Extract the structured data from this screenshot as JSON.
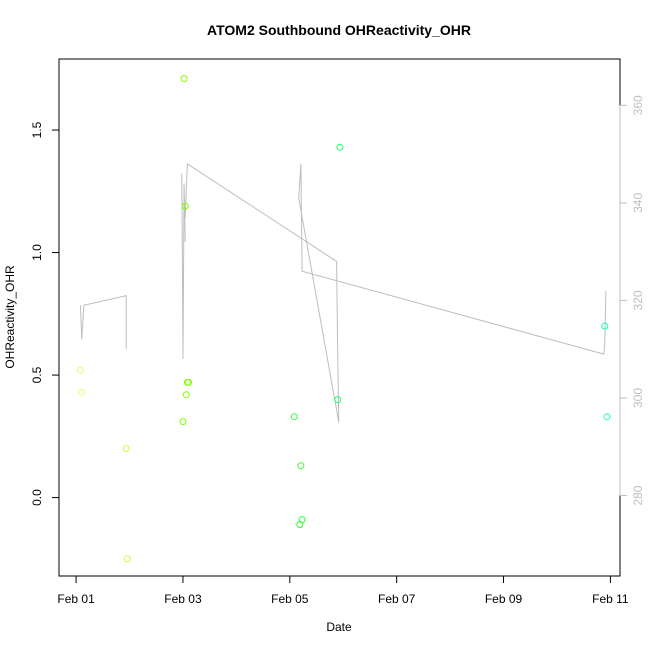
{
  "chart_data": {
    "type": "scatter",
    "title": "ATOM2 Southbound OHReactivity_OHR",
    "xlabel": "Date",
    "ylabel": "OHReactivity_OHR",
    "x_ticks": [
      "Feb 01",
      "Feb 03",
      "Feb 05",
      "Feb 07",
      "Feb 09",
      "Feb 11"
    ],
    "y_ticks": [
      "0.0",
      "0.5",
      "1.0",
      "1.5"
    ],
    "y_right_ticks": [
      "280",
      "300",
      "320",
      "340",
      "360"
    ],
    "x_range_days": [
      -0.32,
      10.18
    ],
    "xlim": [
      "2005-01-31",
      "2005-02-11"
    ],
    "ylim": [
      -0.32,
      1.79
    ],
    "y_right_lim": [
      263.5,
      369.5
    ],
    "colors": {
      "right_axis": "#bfbfbf",
      "line": "#bebebe"
    },
    "series": [
      {
        "kind": "points",
        "axis": "left",
        "points": [
          {
            "x": "2005-02-01 02:00",
            "y": 0.52,
            "color": "#e6ff66"
          },
          {
            "x": "2005-02-01 02:30",
            "y": 0.43,
            "color": "#e6ff66"
          },
          {
            "x": "2005-02-01 22:30",
            "y": 0.2,
            "color": "#ccff33"
          },
          {
            "x": "2005-02-01 23:00",
            "y": -0.25,
            "color": "#ccff33"
          },
          {
            "x": "2005-02-03 00:30",
            "y": 1.71,
            "color": "#80ff00"
          },
          {
            "x": "2005-02-03 01:00",
            "y": 1.19,
            "color": "#80ff00"
          },
          {
            "x": "2005-02-03 00:00",
            "y": 0.31,
            "color": "#80ff00"
          },
          {
            "x": "2005-02-03 01:30",
            "y": 0.42,
            "color": "#80ff00"
          },
          {
            "x": "2005-02-03 02:00",
            "y": 0.47,
            "color": "#80ff00"
          },
          {
            "x": "2005-02-03 02:30",
            "y": 0.47,
            "color": "#80ff00"
          },
          {
            "x": "2005-02-05 02:00",
            "y": 0.33,
            "color": "#33ff33"
          },
          {
            "x": "2005-02-05 05:00",
            "y": 0.13,
            "color": "#33ff33"
          },
          {
            "x": "2005-02-05 05:30",
            "y": -0.09,
            "color": "#33ff33"
          },
          {
            "x": "2005-02-05 04:30",
            "y": -0.11,
            "color": "#33ff33"
          },
          {
            "x": "2005-02-05 22:30",
            "y": 1.43,
            "color": "#1aff66"
          },
          {
            "x": "2005-02-05 21:30",
            "y": 0.4,
            "color": "#1aff66"
          },
          {
            "x": "2005-02-10 21:30",
            "y": 0.7,
            "color": "#1affb3"
          },
          {
            "x": "2005-02-10 22:30",
            "y": 0.33,
            "color": "#1affb3"
          }
        ]
      },
      {
        "kind": "line",
        "axis": "right",
        "points": [
          {
            "x": "2005-02-01 02:00",
            "y": 319
          },
          {
            "x": "2005-02-01 02:30",
            "y": 312
          },
          {
            "x": "2005-02-01 03:30",
            "y": 319
          },
          {
            "x": "2005-02-01 22:30",
            "y": 321
          },
          {
            "x": "2005-02-01 22:30",
            "y": 310
          },
          null,
          {
            "x": "2005-02-02 23:30",
            "y": 346
          },
          {
            "x": "2005-02-03 00:00",
            "y": 308
          },
          {
            "x": "2005-02-03 00:30",
            "y": 344
          },
          {
            "x": "2005-02-03 01:00",
            "y": 332
          },
          null,
          {
            "x": "2005-02-03 01:00",
            "y": 337
          },
          {
            "x": "2005-02-03 02:00",
            "y": 348
          },
          {
            "x": "2005-02-05 21:00",
            "y": 328
          },
          {
            "x": "2005-02-05 21:30",
            "y": 309
          },
          {
            "x": "2005-02-05 22:00",
            "y": 295
          },
          {
            "x": "2005-02-05 04:00",
            "y": 341
          },
          {
            "x": "2005-02-05 05:00",
            "y": 348
          },
          {
            "x": "2005-02-05 05:30",
            "y": 326
          },
          {
            "x": "2005-02-10 21:00",
            "y": 309
          },
          {
            "x": "2005-02-10 21:30",
            "y": 311
          },
          {
            "x": "2005-02-10 22:00",
            "y": 322
          }
        ]
      }
    ]
  }
}
